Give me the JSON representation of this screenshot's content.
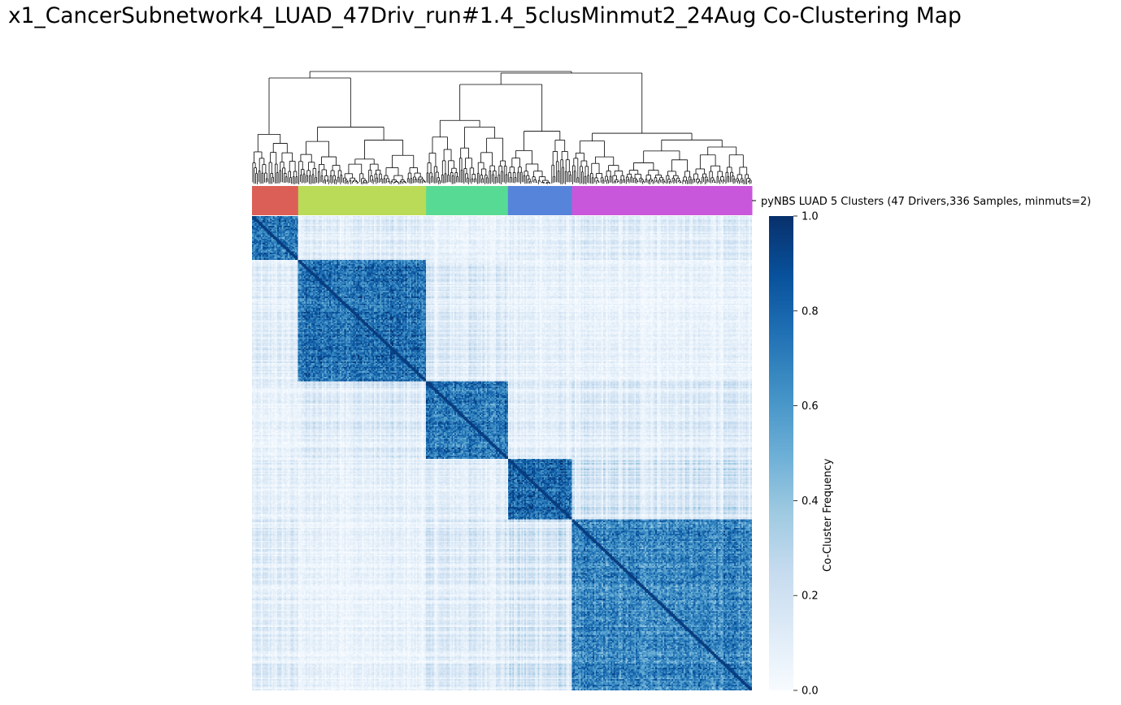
{
  "chart_data": {
    "type": "heatmap",
    "title": "x1_CancerSubnetwork4_LUAD_47Driv_run#1.4_5clusMinmut2_24Aug Co-Clustering Map",
    "row_color_label": "pyNBS LUAD 5 Clusters (47 Drivers,336 Samples, minmuts=2)",
    "colorbar": {
      "label": "Co-Cluster Frequency",
      "range": [
        0.0,
        1.0
      ],
      "ticks": [
        "0.0",
        "0.2",
        "0.4",
        "0.6",
        "0.8",
        "1.0"
      ],
      "colormap": "Blues"
    },
    "n_samples": 336,
    "clusters": [
      {
        "color": "#db5f57",
        "size": 31
      },
      {
        "color": "#b9db57",
        "size": 86
      },
      {
        "color": "#57db94",
        "size": 55
      },
      {
        "color": "#5784db",
        "size": 43
      },
      {
        "color": "#c957db",
        "size": 121
      }
    ],
    "within_cluster_frequency": [
      0.7,
      0.75,
      0.72,
      0.78,
      0.65
    ],
    "between_cluster_frequency": [
      [
        0.7,
        0.12,
        0.08,
        0.1,
        0.12
      ],
      [
        0.12,
        0.75,
        0.15,
        0.1,
        0.08
      ],
      [
        0.08,
        0.15,
        0.72,
        0.12,
        0.14
      ],
      [
        0.1,
        0.1,
        0.12,
        0.78,
        0.18
      ],
      [
        0.12,
        0.08,
        0.14,
        0.18,
        0.65
      ]
    ],
    "grid": false,
    "legend": "right"
  }
}
